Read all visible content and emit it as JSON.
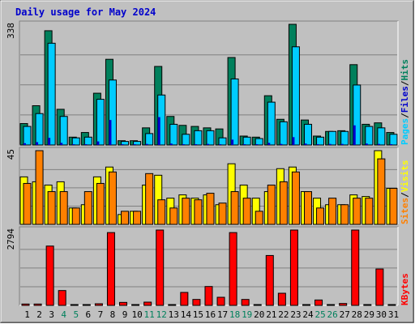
{
  "title": "Daily usage for May 2024",
  "colors": {
    "frame_bg": "#c0c0c0",
    "title": "#0000cc",
    "grid": "#808080",
    "hits": "#00805c",
    "files": "#00ccff",
    "pages": "#0000cc",
    "visits": "#ffff00",
    "sites": "#ff8000",
    "kbytes": "#ff0000",
    "weekend_label": "#00805c",
    "weekday_label": "#000000"
  },
  "chart_data": [
    {
      "type": "bar",
      "panel": "hits-files-pages",
      "y_max_label": "338",
      "ylim": [
        0,
        338
      ],
      "legend": [
        {
          "label": "Pages",
          "color": "#00ccff"
        },
        {
          "label": "/",
          "color": "#000000"
        },
        {
          "label": "Files",
          "color": "#0000cc"
        },
        {
          "label": "/",
          "color": "#000000"
        },
        {
          "label": "Hits",
          "color": "#00805c"
        }
      ],
      "series": [
        {
          "name": "Hits",
          "values": [
            60,
            110,
            320,
            100,
            22,
            35,
            145,
            240,
            12,
            12,
            48,
            220,
            80,
            55,
            52,
            48,
            45,
            245,
            25,
            22,
            138,
            72,
            338,
            70,
            25,
            38,
            40,
            225,
            58,
            62,
            35
          ]
        },
        {
          "name": "Files",
          "values": [
            52,
            88,
            285,
            80,
            20,
            22,
            128,
            182,
            10,
            10,
            32,
            140,
            58,
            30,
            40,
            40,
            20,
            185,
            22,
            18,
            120,
            65,
            275,
            58,
            22,
            38,
            38,
            168,
            52,
            48,
            30
          ]
        },
        {
          "name": "Pages",
          "values": [
            5,
            8,
            20,
            6,
            2,
            2,
            10,
            70,
            1,
            1,
            3,
            78,
            4,
            2,
            2,
            3,
            2,
            15,
            2,
            1,
            6,
            3,
            22,
            4,
            1,
            3,
            3,
            55,
            4,
            3,
            2
          ]
        }
      ],
      "categories": [
        "1",
        "2",
        "3",
        "4",
        "5",
        "6",
        "7",
        "8",
        "9",
        "10",
        "11",
        "12",
        "13",
        "14",
        "15",
        "16",
        "17",
        "18",
        "19",
        "20",
        "21",
        "22",
        "23",
        "24",
        "25",
        "26",
        "27",
        "28",
        "29",
        "30",
        "31"
      ]
    },
    {
      "type": "bar",
      "panel": "visits-sites",
      "y_max_label": "45",
      "ylim": [
        0,
        45
      ],
      "legend": [
        {
          "label": "Sites",
          "color": "#ff8000"
        },
        {
          "label": "/",
          "color": "#000000"
        },
        {
          "label": "Visits",
          "color": "#ffff00"
        }
      ],
      "series": [
        {
          "name": "Visits",
          "values": [
            29,
            26,
            24,
            26,
            10,
            12,
            29,
            35,
            6,
            8,
            24,
            30,
            16,
            18,
            16,
            18,
            12,
            37,
            24,
            16,
            20,
            34,
            35,
            20,
            16,
            12,
            12,
            18,
            17,
            45,
            22
          ]
        },
        {
          "name": "Sites",
          "values": [
            25,
            45,
            20,
            20,
            10,
            20,
            25,
            32,
            8,
            8,
            31,
            15,
            10,
            16,
            15,
            19,
            13,
            20,
            16,
            8,
            24,
            26,
            32,
            20,
            10,
            16,
            12,
            16,
            16,
            40,
            22
          ]
        }
      ],
      "categories": [
        "1",
        "2",
        "3",
        "4",
        "5",
        "6",
        "7",
        "8",
        "9",
        "10",
        "11",
        "12",
        "13",
        "14",
        "15",
        "16",
        "17",
        "18",
        "19",
        "20",
        "21",
        "22",
        "23",
        "24",
        "25",
        "26",
        "27",
        "28",
        "29",
        "30",
        "31"
      ]
    },
    {
      "type": "bar",
      "panel": "kbytes",
      "y_max_label": "2794",
      "ylim": [
        0,
        2794
      ],
      "legend": [
        {
          "label": "KBytes",
          "color": "#ff0000"
        }
      ],
      "series": [
        {
          "name": "KBytes",
          "values": [
            50,
            50,
            2200,
            550,
            30,
            30,
            60,
            2700,
            110,
            30,
            120,
            2794,
            30,
            480,
            220,
            700,
            300,
            2700,
            220,
            30,
            1850,
            450,
            2794,
            30,
            200,
            30,
            70,
            2794,
            30,
            1350,
            30
          ]
        }
      ],
      "categories": [
        "1",
        "2",
        "3",
        "4",
        "5",
        "6",
        "7",
        "8",
        "9",
        "10",
        "11",
        "12",
        "13",
        "14",
        "15",
        "16",
        "17",
        "18",
        "19",
        "20",
        "21",
        "22",
        "23",
        "24",
        "25",
        "26",
        "27",
        "28",
        "29",
        "30",
        "31"
      ]
    }
  ],
  "days": [
    "1",
    "2",
    "3",
    "4",
    "5",
    "6",
    "7",
    "8",
    "9",
    "10",
    "11",
    "12",
    "13",
    "14",
    "15",
    "16",
    "17",
    "18",
    "19",
    "20",
    "21",
    "22",
    "23",
    "24",
    "25",
    "26",
    "27",
    "28",
    "29",
    "30",
    "31"
  ],
  "weekend_days": [
    "4",
    "5",
    "11",
    "12",
    "18",
    "19",
    "25",
    "26"
  ]
}
